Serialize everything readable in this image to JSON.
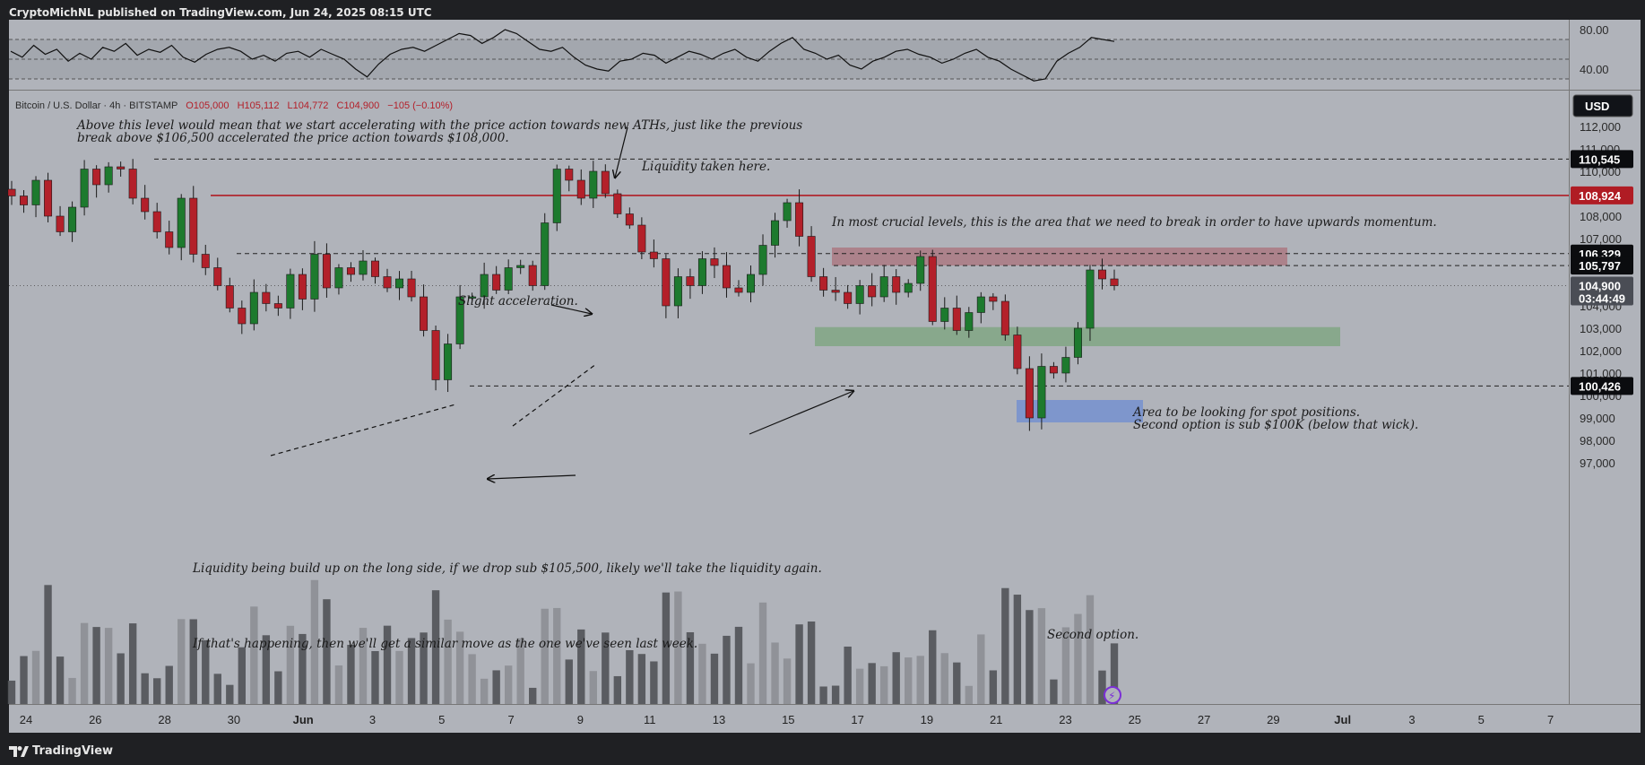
{
  "header": {
    "published": "CryptoMichNL published on TradingView.com, Jun 24, 2025 08:15 UTC"
  },
  "legend": {
    "symbol": "Bitcoin / U.S. Dollar · 4h · BITSTAMP",
    "open": "O105,000",
    "high": "H105,112",
    "low": "L104,772",
    "close": "C104,900",
    "change": "−105 (−0.10%)"
  },
  "currency_button": "USD",
  "footer": {
    "brand": "TradingView"
  },
  "colors": {
    "up": "#1d7a2e",
    "down": "#b3202a",
    "resistance": "#b01c24",
    "panel": "#b0b3ba"
  },
  "chart_data": [
    {
      "type": "line",
      "title": "",
      "yticks": [
        "80.00",
        "40.00"
      ],
      "ylim": [
        20,
        90
      ],
      "bands": [
        30,
        70
      ],
      "series": [
        {
          "values": [
            58,
            52,
            64,
            55,
            60,
            48,
            56,
            50,
            62,
            58,
            66,
            54,
            60,
            57,
            64,
            52,
            47,
            55,
            60,
            62,
            58,
            50,
            54,
            48,
            56,
            58,
            52,
            60,
            55,
            50,
            40,
            32,
            45,
            55,
            60,
            62,
            58,
            64,
            70,
            76,
            74,
            66,
            72,
            80,
            76,
            68,
            60,
            58,
            62,
            52,
            44,
            40,
            38,
            48,
            50,
            56,
            54,
            46,
            52,
            58,
            55,
            50,
            56,
            60,
            52,
            48,
            58,
            66,
            72,
            60,
            56,
            50,
            54,
            44,
            40,
            48,
            52,
            58,
            60,
            55,
            52,
            46,
            50,
            56,
            60,
            52,
            48,
            40,
            34,
            28,
            30,
            48,
            56,
            62,
            72,
            70,
            68
          ]
        }
      ]
    },
    {
      "type": "candlestick",
      "title": "",
      "ylim": [
        96300,
        113000
      ],
      "yticks": [
        "112,000",
        "111,000",
        "110,000",
        "109,000",
        "108,000",
        "107,000",
        "106,000",
        "105,000",
        "104,000",
        "103,000",
        "102,000",
        "101,000",
        "100,000",
        "99,000",
        "98,000",
        "97,000"
      ],
      "xticks": [
        "24",
        "26",
        "28",
        "30",
        "Jun",
        "3",
        "5",
        "7",
        "9",
        "11",
        "13",
        "15",
        "17",
        "19",
        "21",
        "23",
        "25",
        "27",
        "29",
        "Jul",
        "3",
        "5",
        "7"
      ],
      "price_tags": [
        "110,545",
        "108,924",
        "106,329",
        "105,797",
        "104,900",
        "100,426"
      ],
      "countdown": "03:44:49",
      "levels": [
        110545,
        108924,
        106329,
        105797,
        100426
      ],
      "zones": [
        {
          "name": "supply",
          "from": 105797,
          "to": 106600
        },
        {
          "name": "spot",
          "from": 102200,
          "to": 103050
        },
        {
          "name": "second-option",
          "from": 98800,
          "to": 99800
        }
      ],
      "close_path": [
        108900,
        108500,
        109600,
        108000,
        107300,
        108400,
        110100,
        109400,
        110200,
        110100,
        108800,
        108200,
        107300,
        106600,
        108800,
        106300,
        105700,
        104900,
        103900,
        103200,
        104600,
        104100,
        103900,
        105400,
        104300,
        106300,
        104800,
        105700,
        105400,
        106000,
        105300,
        104800,
        105200,
        104400,
        102900,
        100700,
        102300,
        104400,
        104400,
        105400,
        104700,
        105700,
        105800,
        104900,
        107700,
        110100,
        109600,
        108800,
        110000,
        109000,
        108100,
        107600,
        106400,
        106100,
        104000,
        105300,
        104900,
        106100,
        105800,
        104800,
        104600,
        105400,
        106700,
        107800,
        108600,
        107100,
        105300,
        104700,
        104600,
        104100,
        104900,
        104400,
        105300,
        104600,
        105000,
        106200,
        103300,
        103900,
        102900,
        103700,
        104400,
        104200,
        102700,
        101200,
        99000,
        101300,
        101000,
        101700,
        103000,
        105600,
        105200,
        104900
      ],
      "annotations": [
        "Above this level would mean that we start accelerating with the price action towards new ATHs, just like the previous",
        "break above $106,500 accelerated the price action towards $108,000.",
        "Liquidity taken here.",
        "In most crucial levels, this is the area that we need to break in order to have upwards momentum.",
        "Slight acceleration.",
        "Area to be looking for spot positions.",
        "Second option is sub $100K (below that wick).",
        "Liquidity being build up on the long side, if we drop sub $105,500, likely we'll take the liquidity again.",
        "If that's happening, then we'll get a similar move as the one we've seen last week.",
        "Second option."
      ]
    }
  ]
}
